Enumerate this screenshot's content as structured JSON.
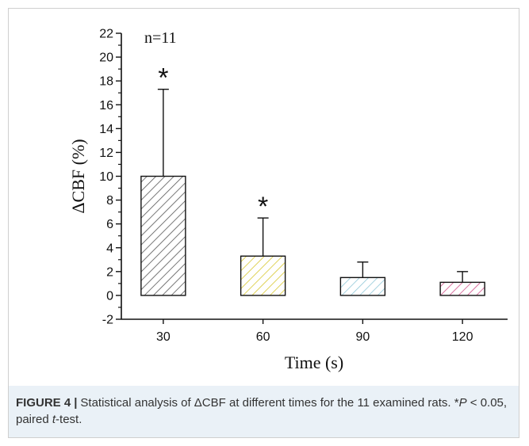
{
  "chart_data": {
    "type": "bar",
    "categories": [
      "30",
      "60",
      "90",
      "120"
    ],
    "values": [
      10.0,
      3.3,
      1.5,
      1.1
    ],
    "errors": [
      7.3,
      3.2,
      1.3,
      0.9
    ],
    "significance": [
      "*",
      "*",
      "",
      ""
    ],
    "bar_colors": [
      "#555555",
      "#d8c830",
      "#8fc7d8",
      "#d2508a"
    ],
    "xlabel": "Time (s)",
    "ylabel": "ΔCBF (%)",
    "ylim": [
      -2,
      22
    ],
    "yticks": [
      -2,
      0,
      2,
      4,
      6,
      8,
      10,
      12,
      14,
      16,
      18,
      20,
      22
    ],
    "annotation": "n=11",
    "grid": false
  },
  "caption": {
    "label": "FIGURE 4",
    "separator": "|",
    "text_1": "Statistical analysis of ΔCBF at different times for the 11 examined rats. *",
    "p_symbol": "P",
    "text_2": " < 0.05, paired ",
    "t_symbol": "t",
    "text_3": "-test."
  }
}
